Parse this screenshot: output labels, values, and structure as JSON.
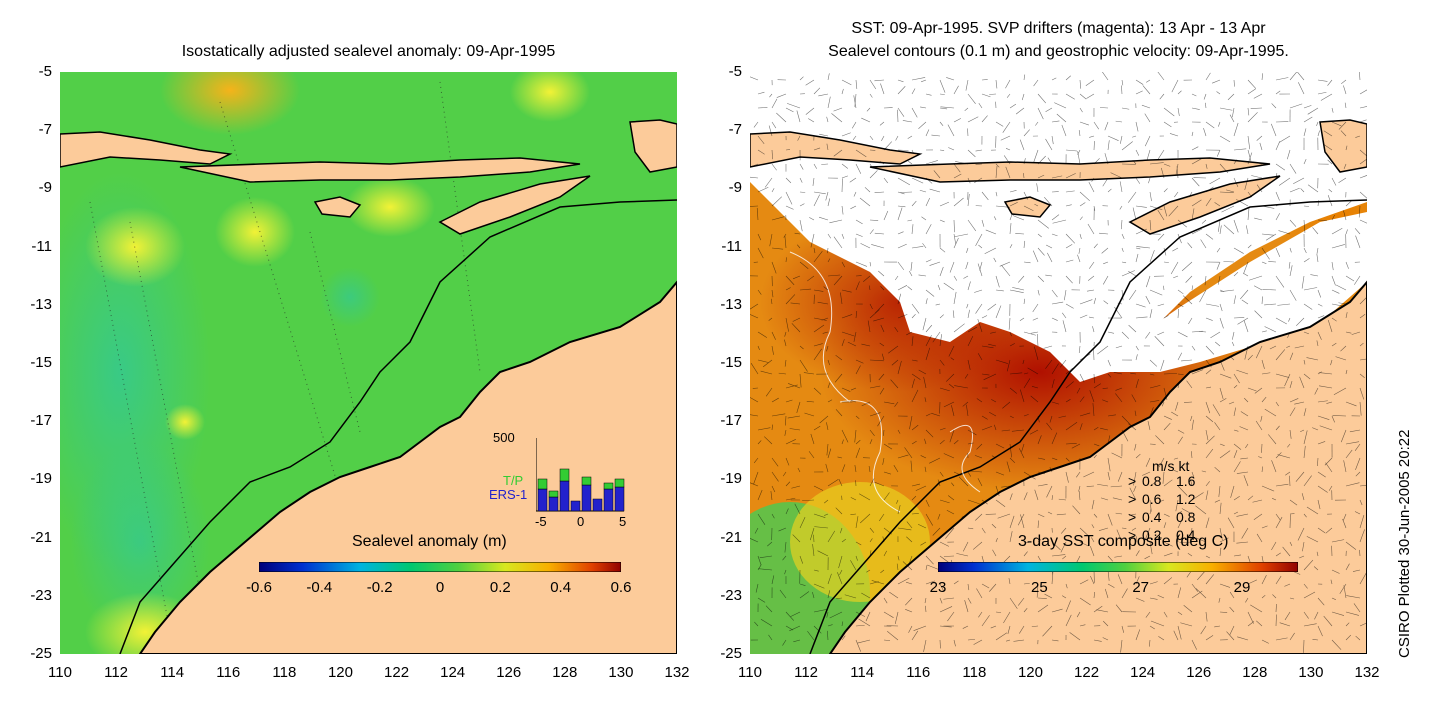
{
  "left_panel": {
    "title": "Isostatically adjusted sealevel anomaly: 09-Apr-1995",
    "colorbar_label": "Sealevel anomaly (m)",
    "colorbar_ticks": [
      "-0.6",
      "-0.4",
      "-0.2",
      "0",
      "0.2",
      "0.4",
      "0.6"
    ],
    "inset": {
      "ymax_label": "500",
      "tp_label": "T/P",
      "ers_label": "ERS-1",
      "x_ticks": [
        "-5",
        "0",
        "5"
      ],
      "tp_color": "#33cc33",
      "ers_color": "#2222cc"
    }
  },
  "right_panel": {
    "title_line1": "SST: 09-Apr-1995. SVP drifters (magenta): 13 Apr - 13 Apr",
    "title_line2": "Sealevel contours (0.1 m) and geostrophic velocity: 09-Apr-1995.",
    "colorbar_label": "3-day SST composite (deg C)",
    "colorbar_ticks": [
      "23",
      "25",
      "27",
      "29"
    ],
    "legend": {
      "header": "m/s  kt",
      "rows": [
        {
          "ms": "0.8",
          "kt": "1.6"
        },
        {
          "ms": "0.6",
          "kt": "1.2"
        },
        {
          "ms": "0.4",
          "kt": "0.8"
        },
        {
          "ms": "0.2",
          "kt": "0.4"
        }
      ]
    }
  },
  "axes": {
    "y_ticks": [
      "-5",
      "-7",
      "-9",
      "-11",
      "-13",
      "-15",
      "-17",
      "-19",
      "-21",
      "-23",
      "-25"
    ],
    "x_ticks": [
      "110",
      "112",
      "114",
      "116",
      "118",
      "120",
      "122",
      "124",
      "126",
      "128",
      "130",
      "132"
    ]
  },
  "credit": "CSIRO Plotted 30-Jun-2005 20:22",
  "colors": {
    "land": "#fccb9a",
    "ocean_green": "#4fd14f",
    "no_data": "#ffffff"
  }
}
